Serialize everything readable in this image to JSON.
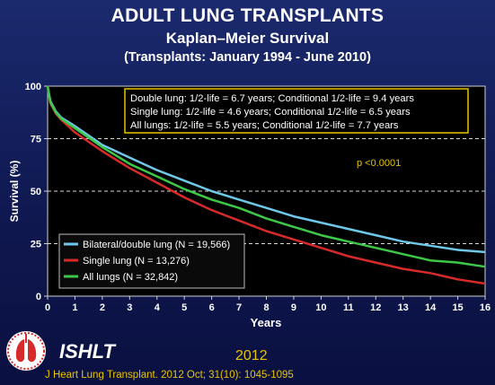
{
  "title": {
    "line1": "ADULT LUNG TRANSPLANTS",
    "line2": "Kaplan–Meier Survival",
    "line3": "(Transplants:  January 1994  - June 2010)"
  },
  "footer": {
    "org": "ISHLT",
    "year": "2012",
    "citation": "J Heart Lung Transplant.  2012 Oct; 31(10): 1045-1095"
  },
  "colors": {
    "series_blue": "#6fc8e8",
    "series_red": "#d72a2a",
    "series_green": "#3dc84a",
    "accent_yellow": "#e8c400",
    "plot_bg": "#000000",
    "page_bg": "#1b2a6e"
  },
  "chart_data": {
    "type": "line",
    "xlabel": "Years",
    "ylabel": "Survival (%)",
    "xlim": [
      0,
      16
    ],
    "ylim": [
      0,
      100
    ],
    "xticks": [
      "0",
      "1",
      "2",
      "3",
      "4",
      "5",
      "6",
      "7",
      "8",
      "9",
      "10",
      "11",
      "12",
      "13",
      "14",
      "15",
      "16"
    ],
    "yticks": [
      "0",
      "25",
      "50",
      "75",
      "100"
    ],
    "grid": "horizontal dashed at 25, 50, 75",
    "annotation_box": [
      "Double lung: 1/2-life = 6.7 years; Conditional 1/2-life = 9.4 years",
      "Single lung: 1/2-life = 4.6 years; Conditional 1/2-life = 6.5 years",
      "All lungs: 1/2-life = 5.5 years; Conditional 1/2-life = 7.7 years"
    ],
    "pvalue": "p <0.0001",
    "legend_position": "bottom-left",
    "series": [
      {
        "name": "Bilateral/double lung (N = 19,566)",
        "color": "#6fc8e8",
        "x": [
          0,
          0.1,
          0.3,
          0.5,
          1,
          2,
          3,
          4,
          5,
          6,
          7,
          8,
          9,
          10,
          11,
          12,
          13,
          14,
          15,
          16
        ],
        "y": [
          100,
          93,
          88,
          85,
          81,
          72,
          66,
          60,
          55,
          50,
          46,
          42,
          38,
          35,
          32,
          29,
          26,
          24,
          22,
          21
        ]
      },
      {
        "name": "Single lung (N = 13,276)",
        "color": "#d72a2a",
        "x": [
          0,
          0.1,
          0.3,
          0.5,
          1,
          2,
          3,
          4,
          5,
          6,
          7,
          8,
          9,
          10,
          11,
          12,
          13,
          14,
          15,
          16
        ],
        "y": [
          100,
          92,
          87,
          84,
          78,
          69,
          61,
          54,
          47,
          41,
          36,
          31,
          27,
          23,
          19,
          16,
          13,
          11,
          8,
          6
        ]
      },
      {
        "name": "All lungs (N = 32,842)",
        "color": "#3dc84a",
        "x": [
          0,
          0.1,
          0.3,
          0.5,
          1,
          2,
          3,
          4,
          5,
          6,
          7,
          8,
          9,
          10,
          11,
          12,
          13,
          14,
          15,
          16
        ],
        "y": [
          100,
          92.5,
          87.5,
          84.5,
          80,
          71,
          63,
          57,
          51,
          46,
          42,
          37,
          33,
          29,
          26,
          23,
          20,
          17,
          16,
          14
        ]
      }
    ]
  }
}
